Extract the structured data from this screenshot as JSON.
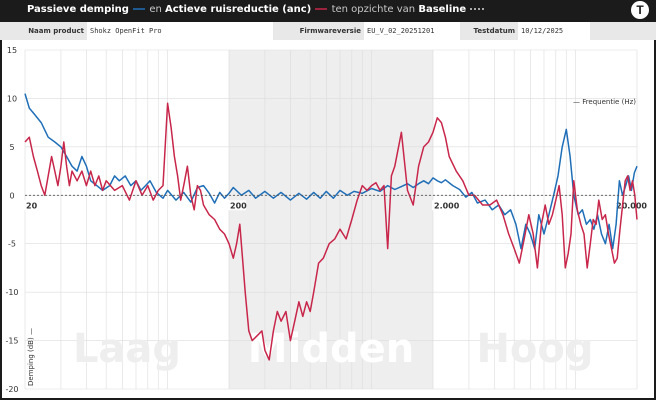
{
  "header": {
    "title_part1": "Passieve demping",
    "title_part2": "en",
    "title_part3": "Actieve ruisreductie (anc)",
    "title_part4": "ten opzichte van",
    "title_part5": "Baseline",
    "logo_letter": "T",
    "legend_colors": {
      "passive": "#1f6fb8",
      "anc": "#c8264a",
      "baseline": "#ffffff"
    }
  },
  "info": {
    "product_label": "Naam product",
    "product_value": "Shokz OpenFit Pro",
    "firmware_label": "Firmwareversie",
    "firmware_value": "EU_V_02_20251201",
    "date_label": "Testdatum",
    "date_value": "10/12/2025"
  },
  "chart_data": {
    "type": "line",
    "xscale": "log",
    "xlim": [
      20,
      20000
    ],
    "ylim": [
      -20,
      15
    ],
    "xticks": [
      "20",
      "200",
      "2.000",
      "20.000"
    ],
    "yticks": [
      "15",
      "10",
      "5",
      "0",
      "-5",
      "-10",
      "-15",
      "-20"
    ],
    "xlabel": "Frequentie (Hz)",
    "ylabel": "Demping (dB)",
    "grid": true,
    "regions": [
      {
        "label": "Laag",
        "from": 20,
        "to": 200,
        "shaded": false
      },
      {
        "label": "Midden",
        "from": 200,
        "to": 2000,
        "shaded": true
      },
      {
        "label": "Hoog",
        "from": 2000,
        "to": 20000,
        "shaded": false
      }
    ],
    "series": [
      {
        "name": "Passieve demping",
        "color": "#1f6fb8",
        "points": [
          [
            20,
            10.5
          ],
          [
            21,
            9
          ],
          [
            22,
            8.5
          ],
          [
            24,
            7.5
          ],
          [
            26,
            6
          ],
          [
            28,
            5.5
          ],
          [
            30,
            5
          ],
          [
            32,
            4
          ],
          [
            34,
            3
          ],
          [
            36,
            2.5
          ],
          [
            38,
            4
          ],
          [
            40,
            3
          ],
          [
            42,
            1.5
          ],
          [
            45,
            1
          ],
          [
            48,
            0.5
          ],
          [
            52,
            1
          ],
          [
            55,
            2
          ],
          [
            58,
            1.5
          ],
          [
            62,
            2
          ],
          [
            66,
            1
          ],
          [
            70,
            1.5
          ],
          [
            74,
            0.5
          ],
          [
            78,
            1
          ],
          [
            82,
            1.5
          ],
          [
            88,
            0.3
          ],
          [
            95,
            -0.3
          ],
          [
            100,
            0.5
          ],
          [
            110,
            -0.5
          ],
          [
            120,
            0.3
          ],
          [
            130,
            -0.7
          ],
          [
            140,
            0.8
          ],
          [
            150,
            1
          ],
          [
            160,
            0.2
          ],
          [
            170,
            -0.8
          ],
          [
            180,
            0.3
          ],
          [
            190,
            -0.3
          ],
          [
            200,
            0.2
          ],
          [
            210,
            0.8
          ],
          [
            230,
            0
          ],
          [
            250,
            0.5
          ],
          [
            270,
            -0.3
          ],
          [
            300,
            0.4
          ],
          [
            330,
            -0.3
          ],
          [
            360,
            0.3
          ],
          [
            400,
            -0.5
          ],
          [
            440,
            0.2
          ],
          [
            480,
            -0.4
          ],
          [
            520,
            0.3
          ],
          [
            560,
            -0.3
          ],
          [
            600,
            0.4
          ],
          [
            650,
            -0.3
          ],
          [
            700,
            0.5
          ],
          [
            760,
            0
          ],
          [
            820,
            0.4
          ],
          [
            900,
            0.2
          ],
          [
            1000,
            0.7
          ],
          [
            1100,
            0.4
          ],
          [
            1200,
            1
          ],
          [
            1300,
            0.6
          ],
          [
            1400,
            0.9
          ],
          [
            1500,
            1.2
          ],
          [
            1600,
            0.8
          ],
          [
            1700,
            1.2
          ],
          [
            1800,
            1.5
          ],
          [
            1900,
            1.2
          ],
          [
            2000,
            1.8
          ],
          [
            2100,
            1.5
          ],
          [
            2200,
            1.3
          ],
          [
            2300,
            1.6
          ],
          [
            2500,
            1
          ],
          [
            2700,
            0.6
          ],
          [
            2900,
            -0.2
          ],
          [
            3100,
            0.3
          ],
          [
            3300,
            -0.8
          ],
          [
            3600,
            -0.5
          ],
          [
            3900,
            -1.5
          ],
          [
            4200,
            -1
          ],
          [
            4500,
            -2
          ],
          [
            4800,
            -1.5
          ],
          [
            5100,
            -3
          ],
          [
            5400,
            -5.5
          ],
          [
            5700,
            -3
          ],
          [
            6000,
            -4
          ],
          [
            6300,
            -5.5
          ],
          [
            6600,
            -2
          ],
          [
            7000,
            -4
          ],
          [
            7400,
            -2
          ],
          [
            7800,
            0
          ],
          [
            8200,
            2
          ],
          [
            8600,
            5
          ],
          [
            9000,
            6.8
          ],
          [
            9400,
            4
          ],
          [
            9800,
            0
          ],
          [
            10300,
            -2
          ],
          [
            10800,
            -1.5
          ],
          [
            11300,
            -3
          ],
          [
            11800,
            -2.5
          ],
          [
            12300,
            -3.5
          ],
          [
            12800,
            -2
          ],
          [
            13400,
            -4
          ],
          [
            14000,
            -5
          ],
          [
            14600,
            -3
          ],
          [
            15200,
            -5.5
          ],
          [
            15800,
            -3
          ],
          [
            16400,
            1.5
          ],
          [
            17000,
            0
          ],
          [
            17600,
            1
          ],
          [
            18200,
            2
          ],
          [
            18800,
            0.5
          ],
          [
            19400,
            2.3
          ],
          [
            20000,
            3
          ]
        ]
      },
      {
        "name": "Actieve ruisreductie (anc)",
        "color": "#c8264a",
        "points": [
          [
            20,
            5.5
          ],
          [
            21,
            6
          ],
          [
            22,
            4
          ],
          [
            23,
            2.5
          ],
          [
            24,
            1
          ],
          [
            25,
            0
          ],
          [
            26,
            2
          ],
          [
            27,
            4
          ],
          [
            28,
            2.5
          ],
          [
            29,
            1
          ],
          [
            30,
            3
          ],
          [
            31,
            5.5
          ],
          [
            32,
            3
          ],
          [
            33,
            1
          ],
          [
            34,
            2.5
          ],
          [
            36,
            1.5
          ],
          [
            38,
            2.5
          ],
          [
            40,
            1
          ],
          [
            42,
            2.5
          ],
          [
            44,
            1
          ],
          [
            46,
            2
          ],
          [
            48,
            0.5
          ],
          [
            50,
            1.5
          ],
          [
            55,
            0.5
          ],
          [
            60,
            1
          ],
          [
            65,
            -0.5
          ],
          [
            70,
            1.5
          ],
          [
            75,
            0
          ],
          [
            80,
            1
          ],
          [
            85,
            -0.5
          ],
          [
            90,
            0.5
          ],
          [
            95,
            1
          ],
          [
            100,
            9.5
          ],
          [
            104,
            7
          ],
          [
            108,
            4
          ],
          [
            112,
            2
          ],
          [
            116,
            -0.5
          ],
          [
            120,
            1
          ],
          [
            125,
            3
          ],
          [
            130,
            0
          ],
          [
            135,
            -1.5
          ],
          [
            140,
            1
          ],
          [
            145,
            0.5
          ],
          [
            150,
            -1
          ],
          [
            160,
            -2
          ],
          [
            170,
            -2.5
          ],
          [
            180,
            -3.5
          ],
          [
            190,
            -4
          ],
          [
            200,
            -5
          ],
          [
            210,
            -6.5
          ],
          [
            218,
            -5
          ],
          [
            226,
            -3
          ],
          [
            234,
            -7
          ],
          [
            240,
            -10
          ],
          [
            250,
            -14
          ],
          [
            260,
            -15
          ],
          [
            275,
            -14.5
          ],
          [
            290,
            -14
          ],
          [
            300,
            -16
          ],
          [
            315,
            -17
          ],
          [
            330,
            -14
          ],
          [
            345,
            -12
          ],
          [
            360,
            -13
          ],
          [
            380,
            -12
          ],
          [
            400,
            -15
          ],
          [
            420,
            -13
          ],
          [
            440,
            -11
          ],
          [
            460,
            -12.5
          ],
          [
            480,
            -11
          ],
          [
            500,
            -12
          ],
          [
            520,
            -10
          ],
          [
            550,
            -7
          ],
          [
            580,
            -6.5
          ],
          [
            620,
            -5
          ],
          [
            660,
            -4.5
          ],
          [
            700,
            -3.5
          ],
          [
            750,
            -4.5
          ],
          [
            800,
            -2.5
          ],
          [
            850,
            -0.5
          ],
          [
            900,
            1
          ],
          [
            950,
            0.5
          ],
          [
            1000,
            1
          ],
          [
            1050,
            1.3
          ],
          [
            1100,
            0.5
          ],
          [
            1150,
            1
          ],
          [
            1200,
            -5.5
          ],
          [
            1250,
            2
          ],
          [
            1300,
            3
          ],
          [
            1400,
            6.5
          ],
          [
            1500,
            0.5
          ],
          [
            1600,
            -1
          ],
          [
            1700,
            3
          ],
          [
            1800,
            5
          ],
          [
            1900,
            5.5
          ],
          [
            2000,
            6.5
          ],
          [
            2100,
            8
          ],
          [
            2200,
            7.5
          ],
          [
            2300,
            6
          ],
          [
            2400,
            4
          ],
          [
            2600,
            2.5
          ],
          [
            2800,
            1.5
          ],
          [
            3000,
            0
          ],
          [
            3200,
            0
          ],
          [
            3500,
            -1
          ],
          [
            3800,
            -1
          ],
          [
            4100,
            -0.5
          ],
          [
            4400,
            -2
          ],
          [
            4700,
            -4
          ],
          [
            5000,
            -5.5
          ],
          [
            5300,
            -7
          ],
          [
            5600,
            -4.5
          ],
          [
            5900,
            -2
          ],
          [
            6200,
            -4
          ],
          [
            6500,
            -7.5
          ],
          [
            6800,
            -3
          ],
          [
            7100,
            -1
          ],
          [
            7400,
            -3
          ],
          [
            7700,
            -2
          ],
          [
            8000,
            -0.5
          ],
          [
            8300,
            1
          ],
          [
            8600,
            -2
          ],
          [
            8900,
            -7.5
          ],
          [
            9200,
            -6
          ],
          [
            9500,
            -4
          ],
          [
            9800,
            1.5
          ],
          [
            10200,
            -1.5
          ],
          [
            10600,
            -3
          ],
          [
            11000,
            -4
          ],
          [
            11400,
            -7.5
          ],
          [
            11800,
            -5
          ],
          [
            12200,
            -2.5
          ],
          [
            12600,
            -3
          ],
          [
            13000,
            -0.5
          ],
          [
            13500,
            -2.5
          ],
          [
            14000,
            -2
          ],
          [
            14500,
            -4
          ],
          [
            15000,
            -5.5
          ],
          [
            15500,
            -7
          ],
          [
            16000,
            -6.5
          ],
          [
            16500,
            -3.5
          ],
          [
            17000,
            -1
          ],
          [
            17500,
            1.5
          ],
          [
            18000,
            2
          ],
          [
            18500,
            0.5
          ],
          [
            19000,
            1.5
          ],
          [
            19500,
            0
          ],
          [
            20000,
            -2.5
          ]
        ]
      },
      {
        "name": "Baseline",
        "color": "#555555",
        "dashed": true,
        "points": [
          [
            20,
            0
          ],
          [
            20000,
            0
          ]
        ]
      }
    ]
  }
}
